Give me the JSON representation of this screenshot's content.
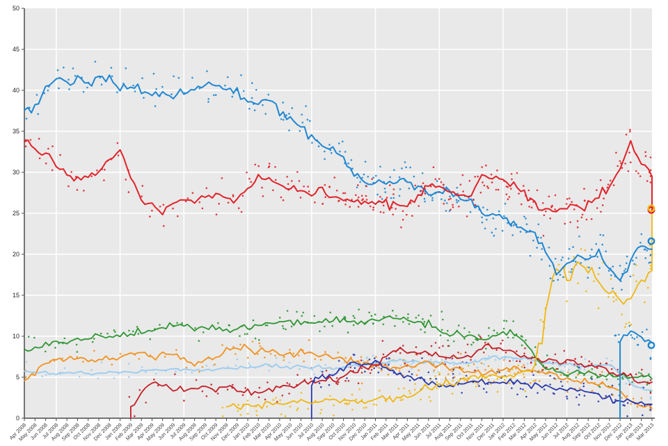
{
  "chart_data": {
    "type": "scatter",
    "description": "Opinion polling trend chart: scatter of individual poll results with moving-average trend lines for nine party series, Apr 2008 - Mar 2013",
    "plot_bg": "#e9e9e9",
    "grid_color": "#ffffff",
    "axis_color": "#4a4a4a",
    "x_label_color": "#3f3f3f",
    "y_label_color": "#222222",
    "y_axis": {
      "min": 0,
      "max": 50,
      "step": 5,
      "tick_labels": [
        "0",
        "5",
        "10",
        "15",
        "20",
        "25",
        "30",
        "35",
        "40",
        "45",
        "50"
      ]
    },
    "x_axis": {
      "tick_labels": [
        "Apr 2008",
        "May 2008",
        "Jun 2008",
        "Jul 2008",
        "Aug 2008",
        "Sep 2008",
        "Oct 2008",
        "Nov 2008",
        "Dec 2008",
        "Jan 2009",
        "Feb 2009",
        "Mar 2009",
        "Apr 2009",
        "May 2009",
        "Jun 2009",
        "Jul 2009",
        "Aug 2009",
        "Sep 2009",
        "Oct 2009",
        "Nov 2009",
        "Dec 2009",
        "Jan 2010",
        "Feb 2010",
        "Mar 2010",
        "Apr 2010",
        "May 2010",
        "Jun 2010",
        "Jul 2010",
        "Aug 2010",
        "Sep 2010",
        "Oct 2010",
        "Nov 2010",
        "Dec 2010",
        "Jan 2011",
        "Feb 2011",
        "Mar 2011",
        "Apr 2011",
        "May 2011",
        "Jun 2011",
        "Jul 2011",
        "Aug 2011",
        "Sep 2011",
        "Oct 2011",
        "Nov 2011",
        "Dec 2011",
        "Jan 2012",
        "Feb 2012",
        "Mar 2012",
        "Apr 2012",
        "May 2012",
        "Jun 2012",
        "Jul 2012",
        "Aug 2012",
        "Sep 2012",
        "Oct 2012",
        "Nov 2012",
        "Dec 2012",
        "Jan 2013",
        "Feb 2013",
        "Mar 2013"
      ],
      "gridline_months": [
        3,
        9,
        15,
        21,
        27,
        33,
        39,
        45,
        51,
        57
      ]
    },
    "series": [
      {
        "id": "light-blue",
        "color": "#9FCEF0",
        "jitter": 0.55,
        "density": 2.2,
        "line_noise": 0.12,
        "line_width": 2.0,
        "rise_from_zero": false,
        "end_connector": null,
        "monthly_trend": [
          5.6,
          5.5,
          5.5,
          5.4,
          5.5,
          5.5,
          5.4,
          5.5,
          5.6,
          5.7,
          5.7,
          5.8,
          5.8,
          5.9,
          6.0,
          5.9,
          5.8,
          5.9,
          6.0,
          6.1,
          6.1,
          6.2,
          6.3,
          6.4,
          6.3,
          6.2,
          6.3,
          6.2,
          6.1,
          6.0,
          6.2,
          6.4,
          6.6,
          6.7,
          6.8,
          7.0,
          6.9,
          6.8,
          6.9,
          6.8,
          6.7,
          6.7,
          6.8,
          7.2,
          7.6,
          7.5,
          7.3,
          7.2,
          7.0,
          6.8,
          6.6,
          6.5,
          6.4,
          6.3,
          6.5,
          6.6,
          5.5,
          4.2,
          3.6,
          3.4
        ]
      },
      {
        "id": "orange",
        "color": "#F2911E",
        "jitter": 0.8,
        "density": 2.6,
        "line_noise": 0.22,
        "line_width": 1.8,
        "rise_from_zero": false,
        "end_connector": null,
        "monthly_trend": [
          4.6,
          5.4,
          6.8,
          7.3,
          7.2,
          7.4,
          7.0,
          7.3,
          7.2,
          7.6,
          7.9,
          8.0,
          7.7,
          7.9,
          7.9,
          7.4,
          6.5,
          7.1,
          7.5,
          8.5,
          8.6,
          8.7,
          8.3,
          8.0,
          7.7,
          7.8,
          8.0,
          7.9,
          7.6,
          7.3,
          7.2,
          6.9,
          6.6,
          6.5,
          6.3,
          6.2,
          6.3,
          6.5,
          7.0,
          6.4,
          6.0,
          5.8,
          5.6,
          5.6,
          5.7,
          6.0,
          6.1,
          5.9,
          5.7,
          5.4,
          5.2,
          4.9,
          4.8,
          4.6,
          4.3,
          4.0,
          3.2,
          2.2,
          1.6,
          1.2
        ]
      },
      {
        "id": "green",
        "color": "#2E9532",
        "jitter": 0.8,
        "density": 2.8,
        "line_noise": 0.22,
        "line_width": 1.8,
        "rise_from_zero": false,
        "end_connector": null,
        "monthly_trend": [
          8.4,
          8.5,
          9.0,
          9.2,
          9.3,
          9.9,
          9.8,
          10.0,
          10.0,
          10.1,
          10.3,
          10.4,
          10.8,
          10.9,
          11.3,
          11.4,
          10.9,
          11.1,
          10.9,
          10.8,
          10.8,
          11.0,
          11.2,
          11.6,
          11.9,
          11.7,
          11.8,
          11.5,
          11.7,
          11.9,
          12.0,
          11.8,
          11.9,
          12.2,
          12.4,
          12.2,
          11.9,
          11.6,
          11.5,
          10.7,
          10.2,
          10.2,
          10.0,
          9.6,
          9.8,
          10.6,
          10.3,
          9.3,
          7.6,
          6.2,
          5.8,
          5.5,
          5.7,
          5.5,
          5.4,
          5.3,
          5.2,
          5.0,
          5.2,
          4.8
        ]
      },
      {
        "id": "dark-red",
        "color": "#C41E27",
        "jitter": 0.8,
        "density": 2.6,
        "line_noise": 0.22,
        "line_width": 1.8,
        "rise_from_zero": true,
        "end_connector": null,
        "monthly_trend": [
          null,
          null,
          null,
          null,
          null,
          null,
          null,
          null,
          null,
          null,
          1.5,
          3.0,
          4.6,
          3.9,
          3.7,
          3.7,
          3.6,
          3.7,
          3.6,
          3.5,
          3.4,
          3.3,
          3.1,
          3.6,
          3.8,
          4.0,
          4.2,
          4.4,
          4.5,
          4.7,
          5.3,
          5.8,
          6.1,
          6.5,
          7.5,
          8.3,
          8.0,
          7.8,
          8.0,
          7.6,
          7.4,
          7.3,
          7.5,
          8.6,
          8.8,
          8.4,
          7.9,
          7.6,
          7.0,
          6.9,
          7.0,
          6.9,
          6.7,
          6.5,
          6.3,
          6.0,
          5.5,
          5.0,
          4.7,
          4.4
        ]
      },
      {
        "id": "navy",
        "color": "#2838AC",
        "jitter": 0.9,
        "density": 2.6,
        "line_noise": 0.25,
        "line_width": 1.8,
        "rise_from_zero": true,
        "end_connector": null,
        "monthly_trend": [
          null,
          null,
          null,
          null,
          null,
          null,
          null,
          null,
          null,
          null,
          null,
          null,
          null,
          null,
          null,
          null,
          null,
          null,
          null,
          null,
          null,
          null,
          null,
          null,
          null,
          null,
          null,
          4.0,
          5.2,
          5.5,
          6.0,
          6.8,
          6.5,
          7.0,
          6.2,
          5.4,
          5.0,
          4.8,
          4.3,
          4.0,
          4.2,
          4.4,
          4.5,
          4.6,
          4.4,
          4.3,
          4.2,
          4.2,
          4.0,
          3.8,
          3.7,
          3.5,
          3.4,
          3.2,
          3.0,
          2.6,
          2.2,
          1.9,
          1.8,
          1.7
        ]
      },
      {
        "id": "yellow",
        "color": "#EFB711",
        "jitter": 0.9,
        "late_jitter": 2.2,
        "late_from": 49,
        "density": 2.8,
        "line_noise": 0.25,
        "line_width": 1.8,
        "rise_from_zero": false,
        "end_connector": 25.6,
        "monthly_trend": [
          null,
          null,
          null,
          null,
          null,
          null,
          null,
          null,
          null,
          null,
          null,
          null,
          null,
          null,
          null,
          null,
          null,
          null,
          null,
          1.3,
          1.4,
          1.5,
          1.6,
          1.7,
          1.8,
          1.9,
          2.0,
          1.9,
          2.0,
          2.1,
          2.2,
          2.1,
          2.0,
          2.2,
          2.4,
          2.4,
          2.8,
          3.2,
          3.6,
          4.0,
          4.3,
          4.6,
          4.8,
          5.0,
          5.2,
          5.3,
          5.2,
          5.8,
          6.5,
          13.0,
          19.0,
          17.5,
          18.5,
          18.0,
          16.5,
          15.5,
          14.3,
          14.5,
          16.5,
          18.0
        ]
      },
      {
        "id": "late-blue",
        "color": "#1E86D2",
        "jitter": 0.9,
        "density": 2.5,
        "line_noise": 0.2,
        "line_width": 2.0,
        "rise_from_zero": true,
        "end_connector": null,
        "monthly_trend": [
          null,
          null,
          null,
          null,
          null,
          null,
          null,
          null,
          null,
          null,
          null,
          null,
          null,
          null,
          null,
          null,
          null,
          null,
          null,
          null,
          null,
          null,
          null,
          null,
          null,
          null,
          null,
          null,
          null,
          null,
          null,
          null,
          null,
          null,
          null,
          null,
          null,
          null,
          null,
          null,
          null,
          null,
          null,
          null,
          null,
          null,
          null,
          null,
          null,
          null,
          null,
          null,
          null,
          null,
          null,
          null,
          9.5,
          10.5,
          9.8,
          9.2
        ]
      },
      {
        "id": "blue",
        "color": "#1E86D2",
        "jitter": 1.2,
        "density": 4.2,
        "line_noise": 0.3,
        "line_width": 2.0,
        "rise_from_zero": false,
        "end_connector": null,
        "monthly_trend": [
          37.4,
          38.2,
          40.2,
          41.2,
          41.0,
          41.2,
          40.8,
          41.3,
          41.4,
          40.5,
          40.3,
          39.6,
          39.5,
          39.8,
          39.3,
          39.8,
          40.0,
          40.8,
          40.5,
          40.2,
          39.9,
          38.8,
          38.4,
          38.6,
          37.2,
          36.4,
          35.8,
          34.4,
          33.0,
          32.8,
          31.9,
          29.8,
          28.8,
          29.0,
          28.8,
          28.8,
          28.9,
          28.2,
          27.2,
          28.0,
          27.5,
          27.2,
          26.4,
          25.2,
          24.8,
          24.2,
          23.6,
          23.1,
          22.5,
          20.5,
          17.8,
          18.8,
          19.3,
          19.3,
          20.2,
          18.0,
          16.8,
          19.0,
          21.0,
          20.6
        ]
      },
      {
        "id": "red",
        "color": "#E12229",
        "jitter": 1.2,
        "density": 4.2,
        "line_noise": 0.3,
        "line_width": 2.0,
        "rise_from_zero": false,
        "end_connector": 25.4,
        "monthly_trend": [
          33.4,
          32.8,
          32.3,
          30.6,
          29.8,
          29.4,
          29.3,
          30.0,
          31.5,
          33.0,
          29.5,
          26.9,
          25.7,
          25.2,
          26.0,
          26.7,
          26.6,
          26.9,
          27.0,
          26.8,
          26.2,
          28.0,
          29.3,
          29.0,
          28.5,
          28.1,
          27.7,
          27.2,
          27.8,
          27.0,
          26.7,
          26.7,
          26.3,
          26.5,
          26.3,
          26.3,
          25.9,
          27.2,
          28.6,
          28.3,
          27.4,
          27.3,
          27.1,
          29.5,
          29.2,
          29.0,
          28.4,
          27.6,
          26.2,
          25.6,
          25.6,
          25.8,
          26.0,
          26.4,
          27.0,
          28.1,
          30.5,
          33.8,
          31.0,
          29.5
        ]
      }
    ],
    "election_markers": [
      {
        "series": "red",
        "value": 25.4,
        "color": "#E12229"
      },
      {
        "series": "yellow",
        "value": 25.6,
        "color": "#EFB711"
      },
      {
        "series": "blue",
        "value": 21.6,
        "color": "#1E86D2"
      },
      {
        "series": "late-blue",
        "value": 8.9,
        "color": "#1E86D2"
      }
    ]
  }
}
